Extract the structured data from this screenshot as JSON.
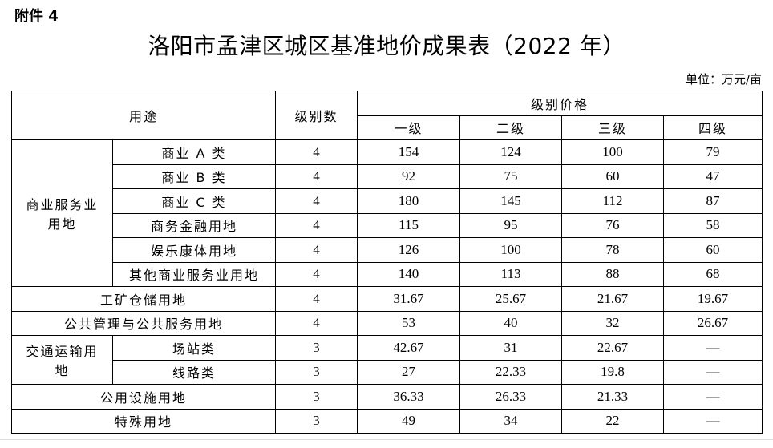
{
  "attachment_label": "附件 4",
  "title": "洛阳市孟津区城区基准地价成果表（2022 年）",
  "unit": "单位：万元/亩",
  "table": {
    "header": {
      "use": "用途",
      "level_count": "级别数",
      "level_price": "级别价格",
      "levels": [
        "一级",
        "二级",
        "三级",
        "四级"
      ]
    },
    "groups": [
      {
        "name": "商业服务业用地",
        "rows": [
          {
            "sub": "商业 A 类",
            "count": "4",
            "values": [
              "154",
              "124",
              "100",
              "79"
            ]
          },
          {
            "sub": "商业 B 类",
            "count": "4",
            "values": [
              "92",
              "75",
              "60",
              "47"
            ]
          },
          {
            "sub": "商业 C 类",
            "count": "4",
            "values": [
              "180",
              "145",
              "112",
              "87"
            ]
          },
          {
            "sub": "商务金融用地",
            "count": "4",
            "values": [
              "115",
              "95",
              "76",
              "58"
            ]
          },
          {
            "sub": "娱乐康体用地",
            "count": "4",
            "values": [
              "126",
              "100",
              "78",
              "60"
            ]
          },
          {
            "sub": "其他商业服务业用地",
            "count": "4",
            "values": [
              "140",
              "113",
              "88",
              "68"
            ]
          }
        ]
      },
      {
        "name": "工矿仓储用地",
        "count": "4",
        "values": [
          "31.67",
          "25.67",
          "21.67",
          "19.67"
        ]
      },
      {
        "name": "公共管理与公共服务用地",
        "count": "4",
        "values": [
          "53",
          "40",
          "32",
          "26.67"
        ]
      },
      {
        "name": "交通运输用地",
        "rows": [
          {
            "sub": "场站类",
            "count": "3",
            "values": [
              "42.67",
              "31",
              "22.67",
              "—"
            ]
          },
          {
            "sub": "线路类",
            "count": "3",
            "values": [
              "27",
              "22.33",
              "19.8",
              "—"
            ]
          }
        ]
      },
      {
        "name": "公用设施用地",
        "count": "3",
        "values": [
          "36.33",
          "26.33",
          "21.33",
          "—"
        ]
      },
      {
        "name": "特殊用地",
        "count": "3",
        "values": [
          "49",
          "34",
          "22",
          "—"
        ]
      }
    ]
  }
}
